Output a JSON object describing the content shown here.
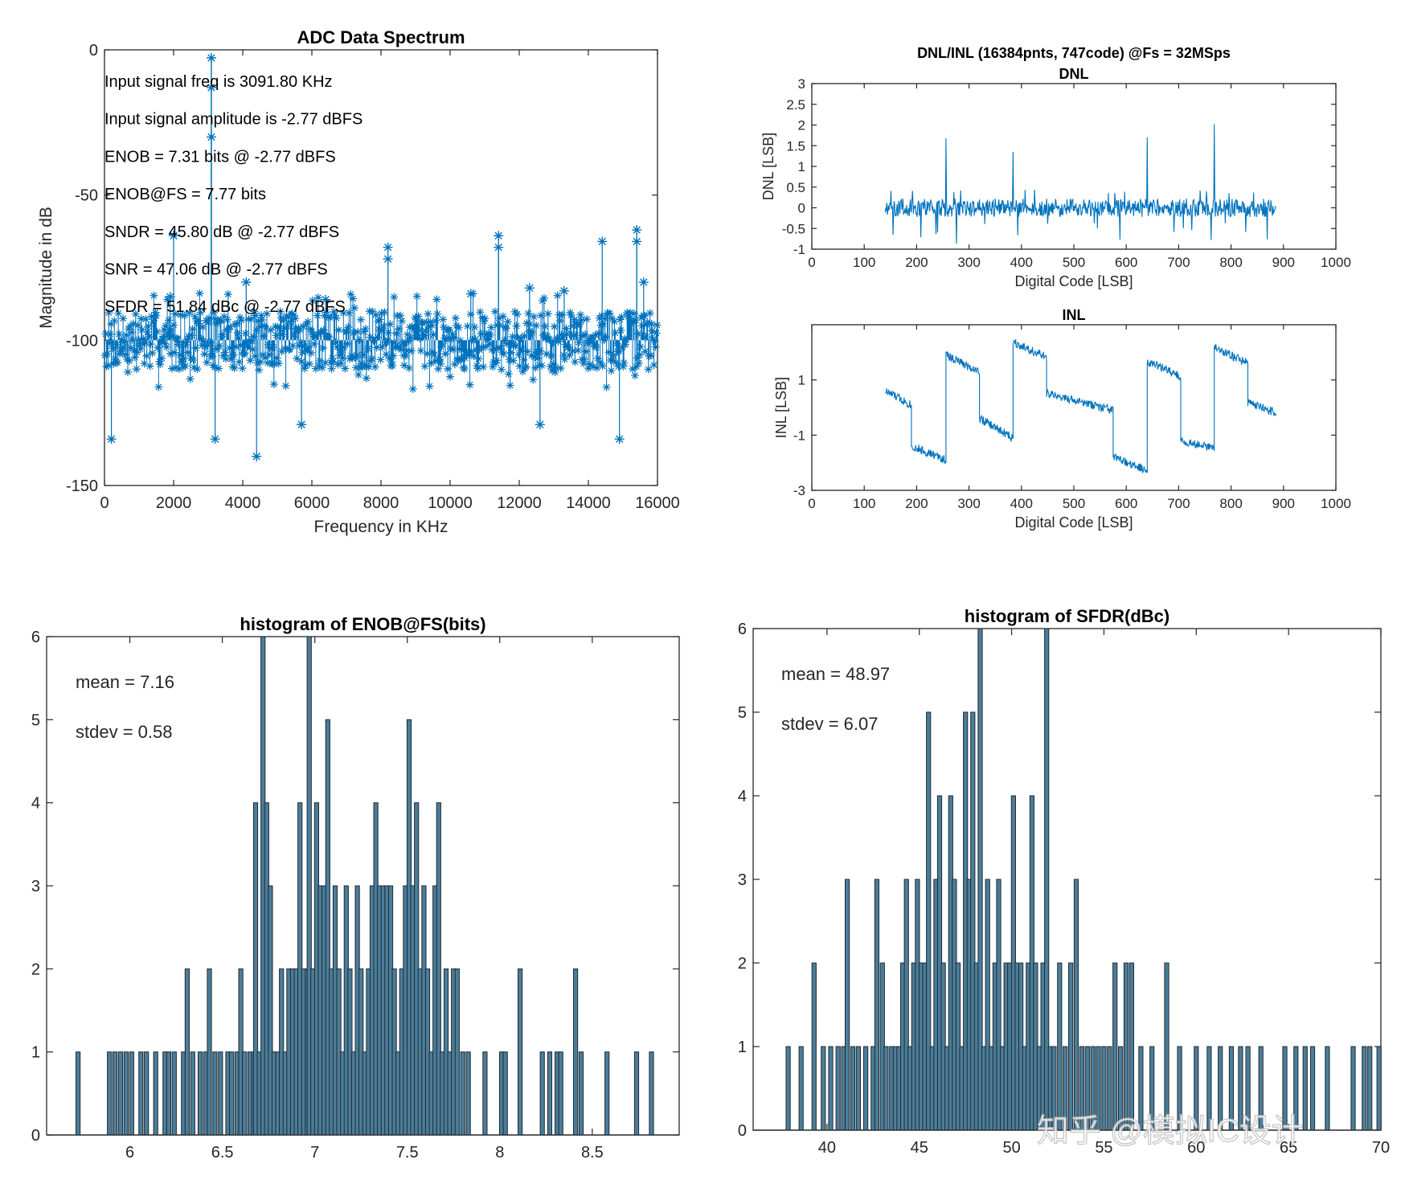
{
  "colors": {
    "series": "#0072BD",
    "hist_fill": "#4B7D99",
    "hist_edge": "#1f2a33",
    "axis": "#262626"
  },
  "watermark": "知乎 @模拟IC设计",
  "chart_data": [
    {
      "id": "spectrum",
      "type": "scatter",
      "title": "ADC Data Spectrum",
      "xlabel": "Frequency in KHz",
      "ylabel": "Magnitude in dB",
      "xlim": [
        0,
        16000
      ],
      "ylim": [
        -150,
        0
      ],
      "xticks": [
        0,
        2000,
        4000,
        6000,
        8000,
        10000,
        12000,
        14000,
        16000
      ],
      "yticks": [
        -150,
        -100,
        -50,
        0
      ],
      "marker": "*",
      "noise_floor_db": -100,
      "noise_spread_db": 10,
      "fundamental": {
        "x": 3091.8,
        "y": -2.77
      },
      "spurs": [
        {
          "x": 3091.8,
          "y": -13
        },
        {
          "x": 3091.8,
          "y": -30
        },
        {
          "x": 2000,
          "y": -64
        },
        {
          "x": 11400,
          "y": -64
        },
        {
          "x": 11400,
          "y": -68
        },
        {
          "x": 8200,
          "y": -68
        },
        {
          "x": 8200,
          "y": -72
        },
        {
          "x": 14400,
          "y": -66
        },
        {
          "x": 15400,
          "y": -62
        },
        {
          "x": 15400,
          "y": -66
        },
        {
          "x": 1900,
          "y": -85
        },
        {
          "x": 4100,
          "y": -80
        },
        {
          "x": 6400,
          "y": -86
        },
        {
          "x": 10600,
          "y": -84
        },
        {
          "x": 12300,
          "y": -82
        },
        {
          "x": 13300,
          "y": -83
        },
        {
          "x": 15600,
          "y": -80
        },
        {
          "x": 3200,
          "y": -134
        },
        {
          "x": 4400,
          "y": -140
        },
        {
          "x": 200,
          "y": -134
        },
        {
          "x": 14900,
          "y": -134
        },
        {
          "x": 12600,
          "y": -129
        },
        {
          "x": 5700,
          "y": -129
        }
      ],
      "annotations": [
        "Input signal freq is 3091.80 KHz",
        "Input signal amplitude is -2.77 dBFS",
        "ENOB = 7.31 bits @ -2.77 dBFS",
        "ENOB@FS = 7.77 bits",
        "SNDR = 45.80 dB @ -2.77 dBFS",
        "SNR = 47.06 dB @ -2.77 dBFS",
        "SFDR = 51.84 dBc @ -2.77 dBFS"
      ]
    },
    {
      "id": "dnl",
      "type": "line",
      "suptitle": "DNL/INL (16384pnts, 747code)  @Fs = 32MSps",
      "title": "DNL",
      "xlabel": "Digital Code [LSB]",
      "ylabel": "DNL [LSB]",
      "xlim": [
        0,
        1000
      ],
      "ylim": [
        -1,
        3
      ],
      "xticks": [
        0,
        100,
        200,
        300,
        400,
        500,
        600,
        700,
        800,
        900,
        1000
      ],
      "yticks": [
        -1,
        -0.5,
        0,
        0.5,
        1,
        1.5,
        2,
        2.5,
        3
      ],
      "code_range": [
        140,
        886
      ],
      "noise_amplitude": 0.22,
      "spikes": [
        {
          "x": 256,
          "y": 1.68
        },
        {
          "x": 384,
          "y": 1.35
        },
        {
          "x": 640,
          "y": 1.7
        },
        {
          "x": 768,
          "y": 2.02
        }
      ]
    },
    {
      "id": "inl",
      "type": "line",
      "title": "INL",
      "xlabel": "Digital Code [LSB]",
      "ylabel": "INL [LSB]",
      "xlim": [
        0,
        1000
      ],
      "ylim": [
        -3,
        3
      ],
      "xticks": [
        0,
        100,
        200,
        300,
        400,
        500,
        600,
        700,
        800,
        900,
        1000
      ],
      "yticks": [
        -3,
        -1,
        1
      ],
      "segments": [
        {
          "x0": 140,
          "x1": 190,
          "y0": 0.6,
          "y1": 0.1
        },
        {
          "x0": 190,
          "x1": 256,
          "y0": -1.4,
          "y1": -1.9
        },
        {
          "x0": 256,
          "x1": 320,
          "y0": 1.9,
          "y1": 1.3
        },
        {
          "x0": 320,
          "x1": 384,
          "y0": -0.4,
          "y1": -1.1
        },
        {
          "x0": 384,
          "x1": 448,
          "y0": 2.4,
          "y1": 1.8
        },
        {
          "x0": 448,
          "x1": 575,
          "y0": 0.5,
          "y1": -0.1
        },
        {
          "x0": 575,
          "x1": 640,
          "y0": -1.8,
          "y1": -2.3
        },
        {
          "x0": 640,
          "x1": 704,
          "y0": 1.7,
          "y1": 1.1
        },
        {
          "x0": 704,
          "x1": 768,
          "y0": -1.2,
          "y1": -1.5
        },
        {
          "x0": 768,
          "x1": 832,
          "y0": 2.2,
          "y1": 1.6
        },
        {
          "x0": 832,
          "x1": 886,
          "y0": 0.2,
          "y1": -0.2
        }
      ]
    },
    {
      "id": "hist_enob",
      "type": "bar",
      "title": "histogram of ENOB@FS(bits)",
      "xlim": [
        5.55,
        8.97
      ],
      "ylim": [
        0,
        6
      ],
      "xticks": [
        6,
        6.5,
        7,
        7.5,
        8,
        8.5
      ],
      "yticks": [
        0,
        1,
        2,
        3,
        4,
        5,
        6
      ],
      "annotations": [
        "mean = 7.16",
        "stdev = 0.58"
      ],
      "bins": [
        [
          5.72,
          1
        ],
        [
          5.89,
          1
        ],
        [
          5.92,
          1
        ],
        [
          5.95,
          1
        ],
        [
          5.98,
          1
        ],
        [
          6.01,
          1
        ],
        [
          6.06,
          1
        ],
        [
          6.09,
          1
        ],
        [
          6.14,
          1
        ],
        [
          6.19,
          1
        ],
        [
          6.21,
          1
        ],
        [
          6.24,
          1
        ],
        [
          6.29,
          1
        ],
        [
          6.31,
          2
        ],
        [
          6.34,
          1
        ],
        [
          6.38,
          1
        ],
        [
          6.41,
          1
        ],
        [
          6.43,
          2
        ],
        [
          6.46,
          1
        ],
        [
          6.49,
          1
        ],
        [
          6.53,
          1
        ],
        [
          6.55,
          1
        ],
        [
          6.58,
          1
        ],
        [
          6.6,
          2
        ],
        [
          6.62,
          1
        ],
        [
          6.65,
          1
        ],
        [
          6.67,
          1
        ],
        [
          6.68,
          4
        ],
        [
          6.7,
          1
        ],
        [
          6.72,
          6
        ],
        [
          6.74,
          4
        ],
        [
          6.76,
          3
        ],
        [
          6.78,
          1
        ],
        [
          6.8,
          1
        ],
        [
          6.82,
          2
        ],
        [
          6.84,
          1
        ],
        [
          6.86,
          2
        ],
        [
          6.88,
          2
        ],
        [
          6.9,
          2
        ],
        [
          6.92,
          4
        ],
        [
          6.94,
          2
        ],
        [
          6.96,
          2
        ],
        [
          6.97,
          6
        ],
        [
          6.99,
          2
        ],
        [
          7.01,
          4
        ],
        [
          7.03,
          3
        ],
        [
          7.05,
          3
        ],
        [
          7.07,
          5
        ],
        [
          7.09,
          2
        ],
        [
          7.11,
          3
        ],
        [
          7.13,
          2
        ],
        [
          7.15,
          1
        ],
        [
          7.17,
          3
        ],
        [
          7.19,
          2
        ],
        [
          7.21,
          1
        ],
        [
          7.23,
          3
        ],
        [
          7.25,
          2
        ],
        [
          7.27,
          1
        ],
        [
          7.29,
          2
        ],
        [
          7.31,
          3
        ],
        [
          7.33,
          4
        ],
        [
          7.35,
          3
        ],
        [
          7.37,
          3
        ],
        [
          7.39,
          3
        ],
        [
          7.41,
          3
        ],
        [
          7.43,
          2
        ],
        [
          7.45,
          1
        ],
        [
          7.47,
          2
        ],
        [
          7.49,
          3
        ],
        [
          7.51,
          5
        ],
        [
          7.53,
          3
        ],
        [
          7.55,
          4
        ],
        [
          7.57,
          2
        ],
        [
          7.59,
          3
        ],
        [
          7.61,
          2
        ],
        [
          7.63,
          1
        ],
        [
          7.65,
          3
        ],
        [
          7.67,
          4
        ],
        [
          7.69,
          1
        ],
        [
          7.71,
          2
        ],
        [
          7.73,
          1
        ],
        [
          7.75,
          2
        ],
        [
          7.77,
          2
        ],
        [
          7.8,
          1
        ],
        [
          7.83,
          1
        ],
        [
          7.92,
          1
        ],
        [
          8.01,
          1
        ],
        [
          8.03,
          1
        ],
        [
          8.11,
          2
        ],
        [
          8.23,
          1
        ],
        [
          8.27,
          1
        ],
        [
          8.31,
          1
        ],
        [
          8.33,
          1
        ],
        [
          8.41,
          2
        ],
        [
          8.44,
          1
        ],
        [
          8.58,
          1
        ],
        [
          8.74,
          1
        ],
        [
          8.82,
          1
        ]
      ]
    },
    {
      "id": "hist_sfdr",
      "type": "bar",
      "title": "histogram of SFDR(dBc)",
      "xlim": [
        36.0,
        70.0
      ],
      "ylim": [
        0,
        6
      ],
      "xticks": [
        40,
        45,
        50,
        55,
        60,
        65,
        70
      ],
      "yticks": [
        0,
        1,
        2,
        3,
        4,
        5,
        6
      ],
      "annotations": [
        "mean = 48.97",
        "stdev = 6.07"
      ],
      "bins": [
        [
          37.9,
          1
        ],
        [
          38.6,
          1
        ],
        [
          39.3,
          2
        ],
        [
          39.8,
          1
        ],
        [
          40.2,
          1
        ],
        [
          40.6,
          1
        ],
        [
          40.9,
          1
        ],
        [
          41.1,
          3
        ],
        [
          41.4,
          1
        ],
        [
          41.7,
          1
        ],
        [
          42.1,
          1
        ],
        [
          42.5,
          1
        ],
        [
          42.7,
          3
        ],
        [
          43.0,
          2
        ],
        [
          43.2,
          1
        ],
        [
          43.5,
          1
        ],
        [
          43.7,
          1
        ],
        [
          43.9,
          1
        ],
        [
          44.1,
          2
        ],
        [
          44.3,
          3
        ],
        [
          44.5,
          1
        ],
        [
          44.7,
          2
        ],
        [
          44.9,
          3
        ],
        [
          45.1,
          2
        ],
        [
          45.3,
          2
        ],
        [
          45.5,
          5
        ],
        [
          45.7,
          1
        ],
        [
          45.9,
          3
        ],
        [
          46.1,
          4
        ],
        [
          46.3,
          2
        ],
        [
          46.5,
          1
        ],
        [
          46.7,
          4
        ],
        [
          46.9,
          3
        ],
        [
          47.1,
          2
        ],
        [
          47.3,
          1
        ],
        [
          47.5,
          5
        ],
        [
          47.7,
          3
        ],
        [
          47.9,
          5
        ],
        [
          48.1,
          2
        ],
        [
          48.3,
          6
        ],
        [
          48.5,
          1
        ],
        [
          48.7,
          3
        ],
        [
          48.9,
          1
        ],
        [
          49.1,
          2
        ],
        [
          49.3,
          3
        ],
        [
          49.5,
          1
        ],
        [
          49.7,
          2
        ],
        [
          49.9,
          2
        ],
        [
          50.1,
          4
        ],
        [
          50.3,
          2
        ],
        [
          50.5,
          2
        ],
        [
          50.7,
          1
        ],
        [
          50.9,
          2
        ],
        [
          51.1,
          4
        ],
        [
          51.3,
          2
        ],
        [
          51.5,
          1
        ],
        [
          51.7,
          2
        ],
        [
          51.9,
          6
        ],
        [
          52.1,
          1
        ],
        [
          52.3,
          1
        ],
        [
          52.6,
          2
        ],
        [
          52.9,
          1
        ],
        [
          53.2,
          2
        ],
        [
          53.5,
          3
        ],
        [
          53.8,
          1
        ],
        [
          54.1,
          1
        ],
        [
          54.4,
          1
        ],
        [
          54.7,
          1
        ],
        [
          55.0,
          1
        ],
        [
          55.3,
          1
        ],
        [
          55.6,
          2
        ],
        [
          55.9,
          1
        ],
        [
          56.2,
          2
        ],
        [
          56.5,
          2
        ],
        [
          57.0,
          1
        ],
        [
          57.6,
          1
        ],
        [
          58.4,
          2
        ],
        [
          59.1,
          1
        ],
        [
          60.0,
          1
        ],
        [
          60.7,
          1
        ],
        [
          61.3,
          1
        ],
        [
          61.9,
          1
        ],
        [
          62.4,
          1
        ],
        [
          62.8,
          1
        ],
        [
          63.5,
          1
        ],
        [
          64.8,
          1
        ],
        [
          65.4,
          1
        ],
        [
          65.9,
          1
        ],
        [
          66.3,
          1
        ],
        [
          67.1,
          1
        ],
        [
          68.5,
          1
        ],
        [
          69.1,
          1
        ],
        [
          69.4,
          1
        ],
        [
          69.9,
          1
        ]
      ]
    }
  ]
}
